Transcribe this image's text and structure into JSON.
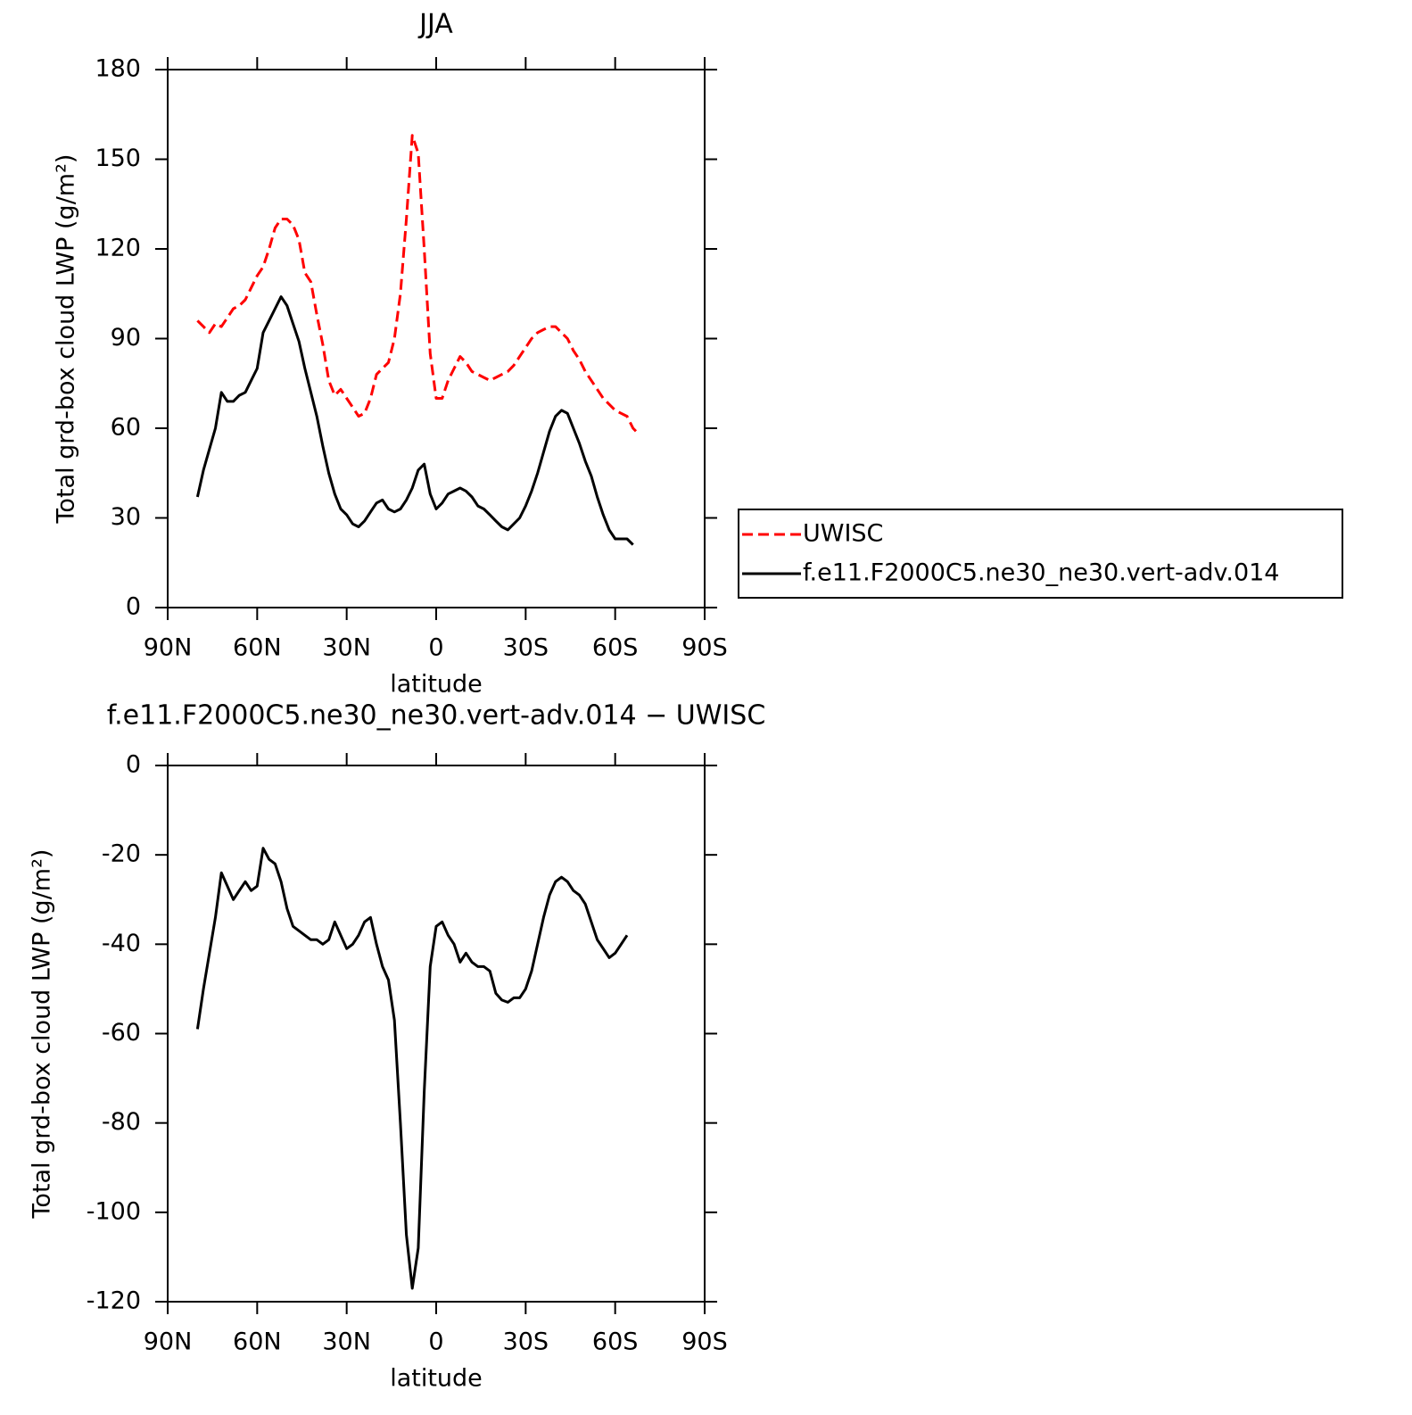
{
  "chart_data": [
    {
      "type": "line",
      "title": "JJA",
      "xlabel": "latitude",
      "ylabel": "Total grd-box cloud LWP (g/m²)",
      "x": [
        80,
        78,
        76,
        74,
        72,
        70,
        68,
        66,
        64,
        62,
        60,
        58,
        56,
        54,
        52,
        50,
        48,
        46,
        44,
        42,
        40,
        38,
        36,
        34,
        32,
        30,
        28,
        26,
        24,
        22,
        20,
        18,
        16,
        14,
        12,
        10,
        8,
        6,
        4,
        2,
        0,
        -2,
        -4,
        -6,
        -8,
        -10,
        -12,
        -14,
        -16,
        -18,
        -20,
        -22,
        -24,
        -26,
        -28,
        -30,
        -32,
        -34,
        -36,
        -38,
        -40,
        -42,
        -44,
        -46,
        -48,
        -50,
        -52,
        -54,
        -56,
        -58,
        -60,
        -62,
        -64,
        -66,
        -68
      ],
      "series": [
        {
          "name": "UWISC",
          "color": "#ff0000",
          "dash": true,
          "values": [
            96,
            94,
            92,
            95,
            94,
            97,
            100,
            101,
            103,
            107,
            111,
            114,
            120,
            127,
            130,
            130,
            128,
            123,
            112,
            109,
            98,
            88,
            76,
            71,
            73,
            70,
            67,
            64,
            65,
            70,
            78,
            80,
            82,
            90,
            105,
            130,
            158,
            152,
            120,
            85,
            70,
            70,
            76,
            80,
            84,
            82,
            79,
            78,
            77,
            76,
            77,
            78,
            79,
            81,
            84,
            87,
            90,
            92,
            93,
            94,
            94,
            92,
            90,
            86,
            83,
            79,
            76,
            73,
            70,
            68,
            66,
            65,
            64,
            60,
            58
          ]
        },
        {
          "name": "f.e11.F2000C5.ne30_ne30.vert-adv.014",
          "color": "#000000",
          "dash": false,
          "values": [
            37,
            46,
            53,
            60,
            72,
            69,
            69,
            71,
            72,
            76,
            80,
            92,
            96,
            100,
            104,
            101,
            95,
            89,
            80,
            72,
            64,
            54,
            45,
            38,
            33,
            31,
            28,
            27,
            29,
            32,
            35,
            36,
            33,
            32,
            33,
            36,
            40,
            46,
            48,
            38,
            33,
            35,
            38,
            39,
            40,
            39,
            37,
            34,
            33,
            31,
            29,
            27,
            26,
            28,
            30,
            34,
            39,
            45,
            52,
            59,
            64,
            66,
            65,
            60,
            55,
            49,
            44,
            37,
            31,
            26,
            23,
            23,
            23,
            21,
            null
          ]
        }
      ],
      "xlim": [
        90,
        -90
      ],
      "xticks": [
        {
          "value": 90,
          "label": "90N"
        },
        {
          "value": 60,
          "label": "60N"
        },
        {
          "value": 30,
          "label": "30N"
        },
        0,
        {
          "value": -30,
          "label": "30S"
        },
        {
          "value": -60,
          "label": "60S"
        },
        {
          "value": -90,
          "label": "90S"
        }
      ],
      "ylim": [
        0,
        180
      ],
      "yticks": [
        0,
        30,
        60,
        90,
        120,
        150,
        180
      ],
      "legend": "right"
    },
    {
      "type": "line",
      "title": "f.e11.F2000C5.ne30_ne30.vert-adv.014 − UWISC",
      "xlabel": "latitude",
      "ylabel": "Total grd-box cloud LWP (g/m²)",
      "x": [
        80,
        78,
        76,
        74,
        72,
        70,
        68,
        66,
        64,
        62,
        60,
        58,
        56,
        54,
        52,
        50,
        48,
        46,
        44,
        42,
        40,
        38,
        36,
        34,
        32,
        30,
        28,
        26,
        24,
        22,
        20,
        18,
        16,
        14,
        12,
        10,
        8,
        6,
        4,
        2,
        0,
        -2,
        -4,
        -6,
        -8,
        -10,
        -12,
        -14,
        -16,
        -18,
        -20,
        -22,
        -24,
        -26,
        -28,
        -30,
        -32,
        -34,
        -36,
        -38,
        -40,
        -42,
        -44,
        -46,
        -48,
        -50,
        -52,
        -54,
        -56,
        -58,
        -60,
        -62,
        -64
      ],
      "series": [
        {
          "color": "#000000",
          "dash": false,
          "values": [
            -59,
            -50,
            -42,
            -34,
            -24,
            -27,
            -30,
            -28,
            -26,
            -28,
            -27,
            -18.5,
            -21,
            -22,
            -26,
            -32,
            -36,
            -37,
            -38,
            -39,
            -39,
            -40,
            -39,
            -35,
            -38,
            -41,
            -40,
            -38,
            -35,
            -34,
            -40,
            -45,
            -48,
            -57,
            -80,
            -105,
            -117,
            -108,
            -73,
            -45,
            -36,
            -35,
            -38,
            -40,
            -44,
            -42,
            -44,
            -45,
            -45,
            -46,
            -51,
            -52.5,
            -53,
            -52,
            -52,
            -50,
            -46,
            -40,
            -34,
            -29,
            -26,
            -25,
            -26,
            -28,
            -29,
            -31,
            -35,
            -39,
            -41,
            -43,
            -42,
            -40,
            -38
          ]
        }
      ],
      "xlim": [
        90,
        -90
      ],
      "xticks": [
        {
          "value": 90,
          "label": "90N"
        },
        {
          "value": 60,
          "label": "60N"
        },
        {
          "value": 30,
          "label": "30N"
        },
        0,
        {
          "value": -30,
          "label": "30S"
        },
        {
          "value": -60,
          "label": "60S"
        },
        {
          "value": -90,
          "label": "90S"
        }
      ],
      "ylim": [
        -120,
        0
      ],
      "yticks": [
        -120,
        -100,
        -80,
        -60,
        -40,
        -20,
        0
      ]
    }
  ]
}
